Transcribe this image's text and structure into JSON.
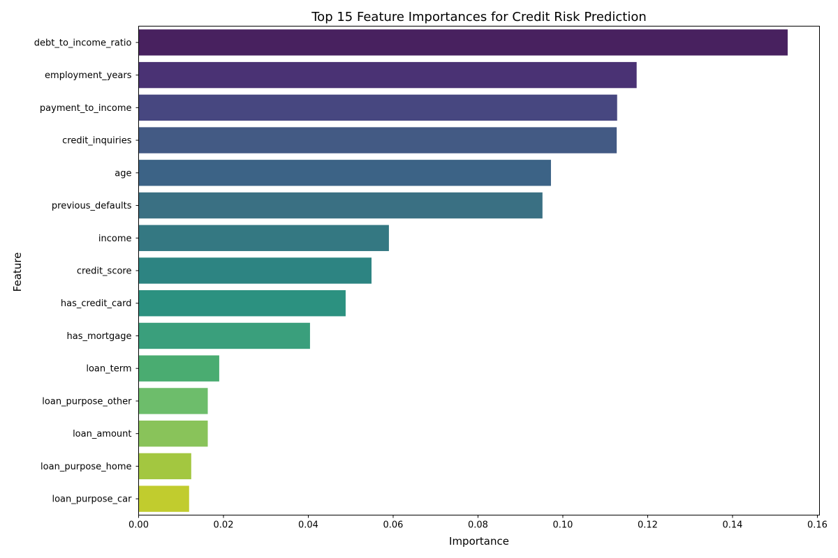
{
  "chart_data": {
    "type": "bar",
    "orientation": "horizontal",
    "title": "Top 15 Feature Importances for Credit Risk Prediction",
    "xlabel": "Importance",
    "ylabel": "Feature",
    "xlim": [
      0,
      0.1605
    ],
    "grid": false,
    "legend": "none",
    "x_ticks": [
      0.0,
      0.02,
      0.04,
      0.06,
      0.08,
      0.1,
      0.12,
      0.14,
      0.16
    ],
    "x_tick_labels": [
      "0.00",
      "0.02",
      "0.04",
      "0.06",
      "0.08",
      "0.10",
      "0.12",
      "0.14",
      "0.16"
    ],
    "categories": [
      "debt_to_income_ratio",
      "employment_years",
      "payment_to_income",
      "credit_inquiries",
      "age",
      "previous_defaults",
      "income",
      "credit_score",
      "has_credit_card",
      "has_mortgage",
      "loan_term",
      "loan_purpose_other",
      "loan_amount",
      "loan_purpose_home",
      "loan_purpose_car"
    ],
    "values": [
      0.153,
      0.1174,
      0.1128,
      0.1127,
      0.0972,
      0.0952,
      0.059,
      0.0549,
      0.0488,
      0.0404,
      0.019,
      0.0163,
      0.0163,
      0.0124,
      0.0119
    ],
    "colors": [
      "#48215f",
      "#4a3274",
      "#474780",
      "#435a84",
      "#3c6386",
      "#3a7083",
      "#347882",
      "#2d8482",
      "#2c9180",
      "#3a9f7c",
      "#4aac71",
      "#6dbd6b",
      "#89c35a",
      "#a3c740",
      "#c1cc2e"
    ]
  }
}
